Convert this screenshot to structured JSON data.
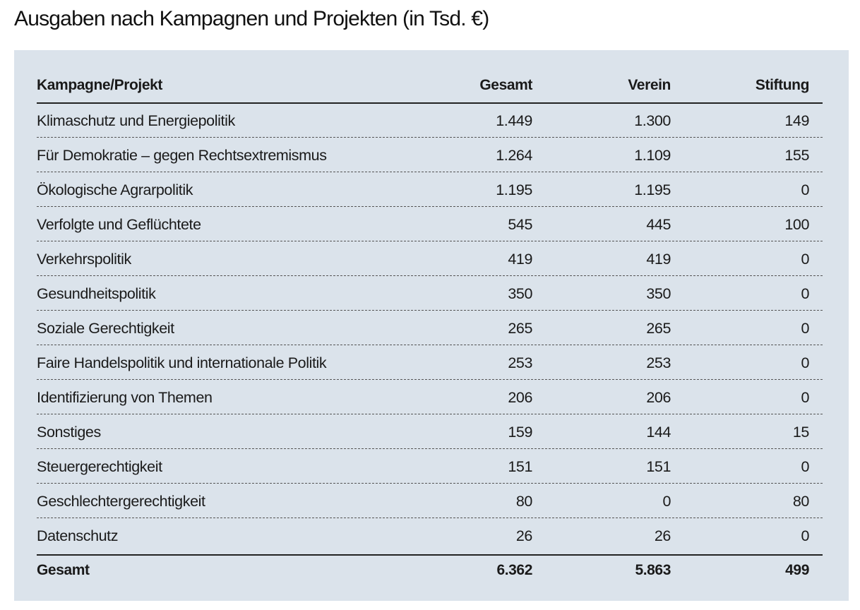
{
  "title": "Ausgaben nach Kampagnen und Projekten (in Tsd. €)",
  "table": {
    "header": [
      "Kampagne/Projekt",
      "Gesamt",
      "Verein",
      "Stiftung"
    ],
    "rows": [
      [
        "Klimaschutz und Energiepolitik",
        "1.449",
        "1.300",
        "149"
      ],
      [
        "Für Demokratie – gegen Rechtsextremismus",
        "1.264",
        "1.109",
        "155"
      ],
      [
        "Ökologische Agrarpolitik",
        "1.195",
        "1.195",
        "0"
      ],
      [
        "Verfolgte und Geflüchtete",
        "545",
        "445",
        "100"
      ],
      [
        "Verkehrspolitik",
        "419",
        "419",
        "0"
      ],
      [
        "Gesundheitspolitik",
        "350",
        "350",
        "0"
      ],
      [
        "Soziale Gerechtigkeit",
        "265",
        "265",
        "0"
      ],
      [
        "Faire Handelspolitik und internationale Politik",
        "253",
        "253",
        "0"
      ],
      [
        "Identifizierung von Themen",
        "206",
        "206",
        "0"
      ],
      [
        "Sonstiges",
        "159",
        "144",
        "15"
      ],
      [
        "Steuergerechtigkeit",
        "151",
        "151",
        "0"
      ],
      [
        "Geschlechtergerechtigkeit",
        "80",
        "0",
        "80"
      ],
      [
        "Datenschutz",
        "26",
        "26",
        "0"
      ]
    ],
    "total": [
      "Gesamt",
      "6.362",
      "5.863",
      "499"
    ]
  }
}
